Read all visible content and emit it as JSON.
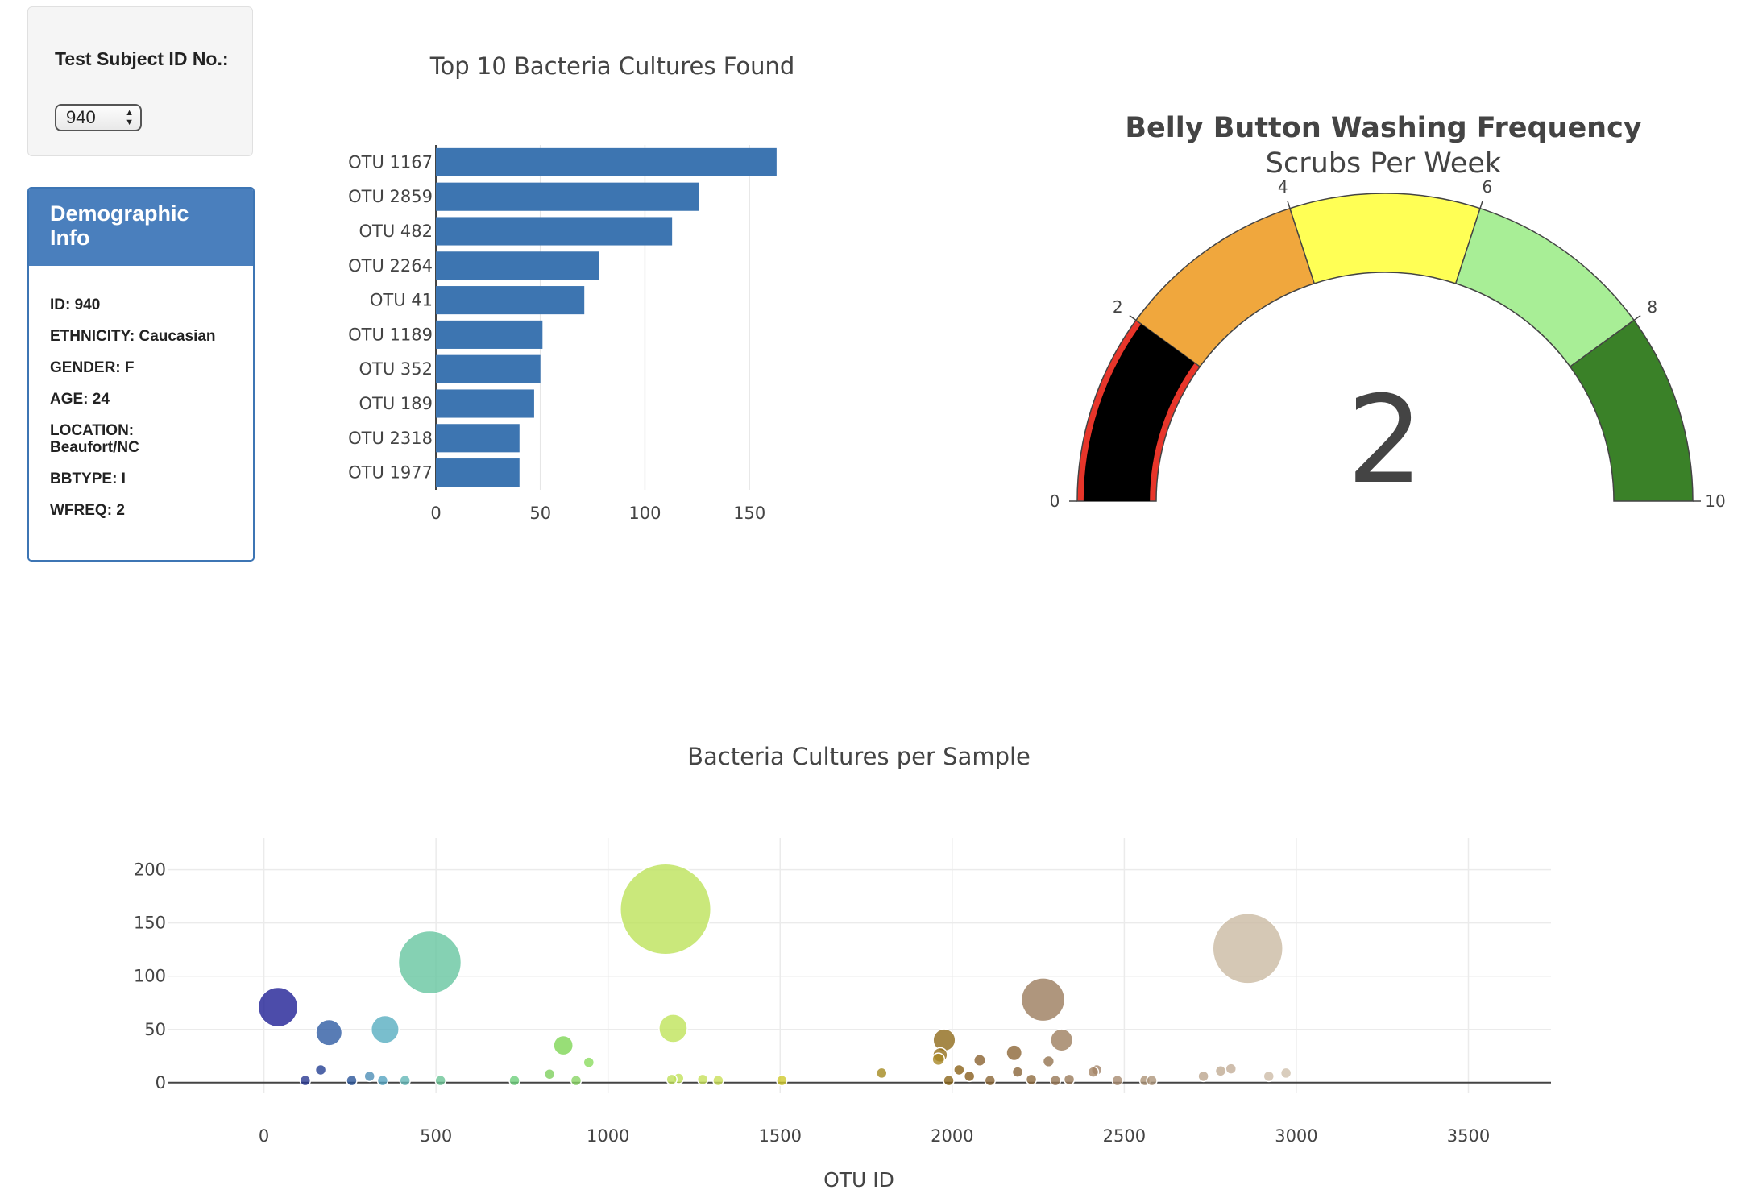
{
  "selector": {
    "label": "Test Subject ID No.:",
    "value": "940"
  },
  "demographics": {
    "title": "Demographic Info",
    "lines": [
      "ID: 940",
      "ETHNICITY: Caucasian",
      "GENDER: F",
      "AGE: 24",
      "LOCATION: Beaufort/NC",
      "BBTYPE: I",
      "WFREQ: 2"
    ]
  },
  "chart_data": [
    {
      "type": "bar",
      "orientation": "horizontal",
      "title": "Top 10 Bacteria Cultures Found",
      "categories": [
        "OTU 1167",
        "OTU 2859",
        "OTU 482",
        "OTU 2264",
        "OTU 41",
        "OTU 1189",
        "OTU 352",
        "OTU 189",
        "OTU 2318",
        "OTU 1977"
      ],
      "values": [
        163,
        126,
        113,
        78,
        71,
        51,
        50,
        47,
        40,
        40
      ],
      "xlim": [
        0,
        175
      ],
      "xticks": [
        0,
        50,
        100,
        150
      ],
      "color": "#3d75b1",
      "grid": true
    },
    {
      "type": "gauge",
      "title": "Belly Button Washing Frequency",
      "subtitle": "Scrubs Per Week",
      "value": 2,
      "range": [
        0,
        10
      ],
      "ticks": [
        0,
        2,
        4,
        6,
        8,
        10
      ],
      "steps": [
        {
          "range": [
            0,
            2
          ],
          "color": "#e8352a"
        },
        {
          "range": [
            2,
            4
          ],
          "color": "#f0a73d"
        },
        {
          "range": [
            4,
            6
          ],
          "color": "#ffff55"
        },
        {
          "range": [
            6,
            8
          ],
          "color": "#a8ee96"
        },
        {
          "range": [
            8,
            10
          ],
          "color": "#3a8128"
        }
      ],
      "bar_color": "#000000"
    },
    {
      "type": "scatter",
      "subtype": "bubble",
      "title": "Bacteria Cultures per Sample",
      "xlabel": "OTU ID",
      "xlim": [
        -280,
        3740
      ],
      "ylim": [
        -10,
        230
      ],
      "xticks": [
        0,
        500,
        1000,
        1500,
        2000,
        2500,
        3000,
        3500
      ],
      "yticks": [
        0,
        50,
        100,
        150,
        200
      ],
      "grid": true,
      "points": [
        {
          "x": 41,
          "y": 71,
          "c": "#1f1f95"
        },
        {
          "x": 189,
          "y": 47,
          "c": "#2e5ba3"
        },
        {
          "x": 165,
          "y": 12,
          "c": "#233f92"
        },
        {
          "x": 120,
          "y": 2,
          "c": "#2a3a92"
        },
        {
          "x": 255,
          "y": 2,
          "c": "#2a5599"
        },
        {
          "x": 352,
          "y": 50,
          "c": "#57aec0"
        },
        {
          "x": 307,
          "y": 6,
          "c": "#4d8fb7"
        },
        {
          "x": 345,
          "y": 2,
          "c": "#55a4c0"
        },
        {
          "x": 410,
          "y": 2,
          "c": "#64b8b8"
        },
        {
          "x": 482,
          "y": 113,
          "c": "#66c6a0"
        },
        {
          "x": 513,
          "y": 2,
          "c": "#6bc496"
        },
        {
          "x": 728,
          "y": 2,
          "c": "#6ed07c"
        },
        {
          "x": 830,
          "y": 8,
          "c": "#7ecf5e"
        },
        {
          "x": 870,
          "y": 35,
          "c": "#7ed655"
        },
        {
          "x": 907,
          "y": 2,
          "c": "#8ad465"
        },
        {
          "x": 944,
          "y": 19,
          "c": "#8bdc5f"
        },
        {
          "x": 1167,
          "y": 163,
          "c": "#bde25a"
        },
        {
          "x": 1189,
          "y": 51,
          "c": "#bfe35a"
        },
        {
          "x": 1185,
          "y": 3,
          "c": "#bfe05a"
        },
        {
          "x": 1205,
          "y": 4,
          "c": "#c2e25c"
        },
        {
          "x": 1275,
          "y": 3,
          "c": "#c5e05a"
        },
        {
          "x": 1320,
          "y": 2,
          "c": "#c9df57"
        },
        {
          "x": 1505,
          "y": 2,
          "c": "#cfc92e"
        },
        {
          "x": 1795,
          "y": 9,
          "c": "#a48a1f"
        },
        {
          "x": 1960,
          "y": 22,
          "c": "#a88726"
        },
        {
          "x": 1977,
          "y": 40,
          "c": "#8e6a1a"
        },
        {
          "x": 1965,
          "y": 26,
          "c": "#946f1c"
        },
        {
          "x": 1990,
          "y": 2,
          "c": "#8a6519"
        },
        {
          "x": 2020,
          "y": 12,
          "c": "#8a6218"
        },
        {
          "x": 2050,
          "y": 6,
          "c": "#875d1b"
        },
        {
          "x": 2080,
          "y": 21,
          "c": "#8a6130"
        },
        {
          "x": 2110,
          "y": 2,
          "c": "#8a6535"
        },
        {
          "x": 2180,
          "y": 28,
          "c": "#8c6737"
        },
        {
          "x": 2190,
          "y": 10,
          "c": "#8a653a"
        },
        {
          "x": 2230,
          "y": 3,
          "c": "#8f6b3e"
        },
        {
          "x": 2264,
          "y": 78,
          "c": "#9b7c5c"
        },
        {
          "x": 2280,
          "y": 20,
          "c": "#94734f"
        },
        {
          "x": 2318,
          "y": 40,
          "c": "#9d7e5e"
        },
        {
          "x": 2300,
          "y": 2,
          "c": "#977856"
        },
        {
          "x": 2340,
          "y": 3,
          "c": "#9a7a5a"
        },
        {
          "x": 2410,
          "y": 10,
          "c": "#a58565"
        },
        {
          "x": 2420,
          "y": 12,
          "c": "#a3856a"
        },
        {
          "x": 2480,
          "y": 2,
          "c": "#a88b70"
        },
        {
          "x": 2560,
          "y": 2,
          "c": "#ad9377"
        },
        {
          "x": 2580,
          "y": 2,
          "c": "#ae967c"
        },
        {
          "x": 2730,
          "y": 6,
          "c": "#bba58d"
        },
        {
          "x": 2780,
          "y": 11,
          "c": "#c0ab94"
        },
        {
          "x": 2810,
          "y": 13,
          "c": "#c3ae98"
        },
        {
          "x": 2859,
          "y": 126,
          "c": "#cbbaa3"
        },
        {
          "x": 2920,
          "y": 6,
          "c": "#cdbca8"
        },
        {
          "x": 2970,
          "y": 9,
          "c": "#cfc0ad"
        }
      ]
    }
  ]
}
